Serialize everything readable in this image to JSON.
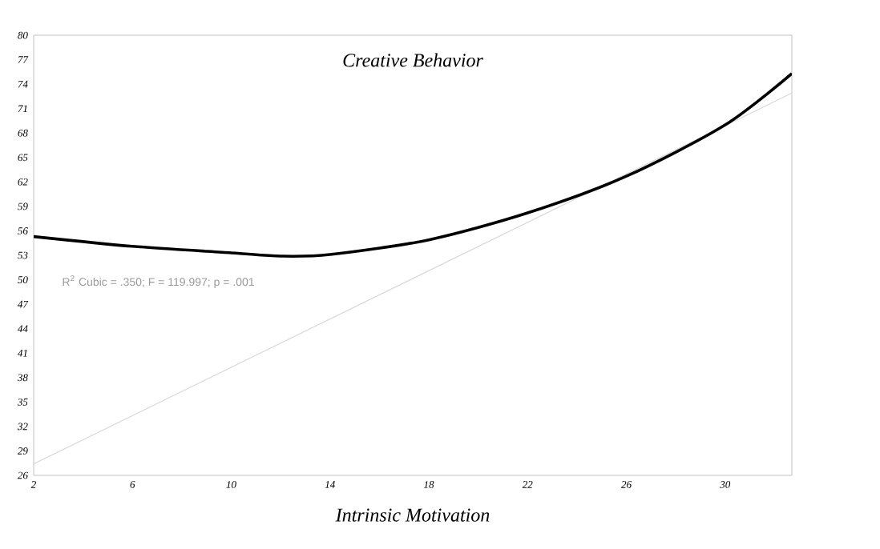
{
  "chart_data": {
    "type": "line",
    "title": "Creative Behavior",
    "xlabel": "Intrinsic Motivation",
    "annotations": [
      "R$^{2}$ Cubic = .350; F = 119.997; p = .001"
    ],
    "xlim": [
      2,
      32.7
    ],
    "xticks": [
      2,
      6,
      10,
      14,
      18,
      22,
      26,
      30
    ],
    "ylim": [
      26,
      80
    ],
    "yticks": [
      26,
      29,
      32,
      35,
      38,
      41,
      44,
      47,
      50,
      53,
      56,
      59,
      62,
      65,
      68,
      71,
      74,
      77,
      80
    ],
    "series": [
      {
        "color": "#d9d9d9",
        "x": [
          2,
          32.7
        ],
        "values": [
          27.4,
          72.9
        ]
      },
      {
        "color": "#000000",
        "x": [
          2,
          6,
          10,
          12,
          14,
          18,
          22,
          26,
          30,
          32.7
        ],
        "values": [
          55.3,
          54.1,
          53.3,
          52.9,
          53.1,
          54.9,
          58.2,
          62.7,
          69.0,
          75.3
        ]
      }
    ]
  }
}
